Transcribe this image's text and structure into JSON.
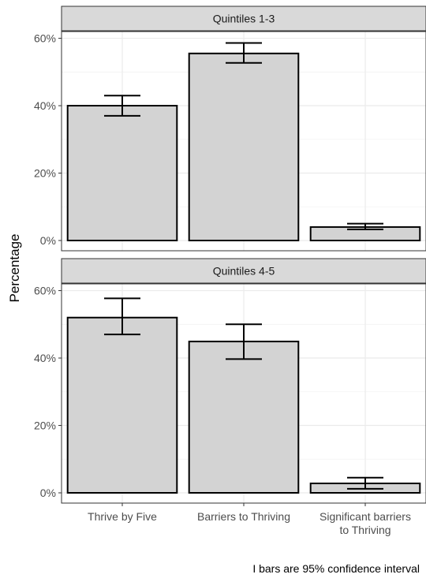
{
  "chart_data": {
    "type": "bar",
    "ylabel": "Percentage",
    "caption": "I bars are 95% confidence interval",
    "categories": [
      "Thrive by Five",
      "Barriers to Thriving",
      "Significant barriers\nto Thriving"
    ],
    "ylim": [
      0,
      0.62
    ],
    "yticks": [
      0,
      0.2,
      0.4,
      0.6
    ],
    "ytick_labels": [
      "0%",
      "20%",
      "40%",
      "60%"
    ],
    "grid": true,
    "legend": "none",
    "colors": {
      "bar_fill": "#d3d3d3",
      "bar_stroke": "#000000",
      "strip_fill": "#d9d9d9",
      "grid": "#ebebeb"
    },
    "panels": [
      {
        "title": "Quintiles 1-3",
        "values": [
          0.4,
          0.555,
          0.04
        ],
        "ci_low": [
          0.37,
          0.527,
          0.033
        ],
        "ci_high": [
          0.43,
          0.586,
          0.05
        ]
      },
      {
        "title": "Quintiles 4-5",
        "values": [
          0.52,
          0.449,
          0.028
        ],
        "ci_low": [
          0.47,
          0.397,
          0.012
        ],
        "ci_high": [
          0.577,
          0.5,
          0.045
        ]
      }
    ]
  }
}
